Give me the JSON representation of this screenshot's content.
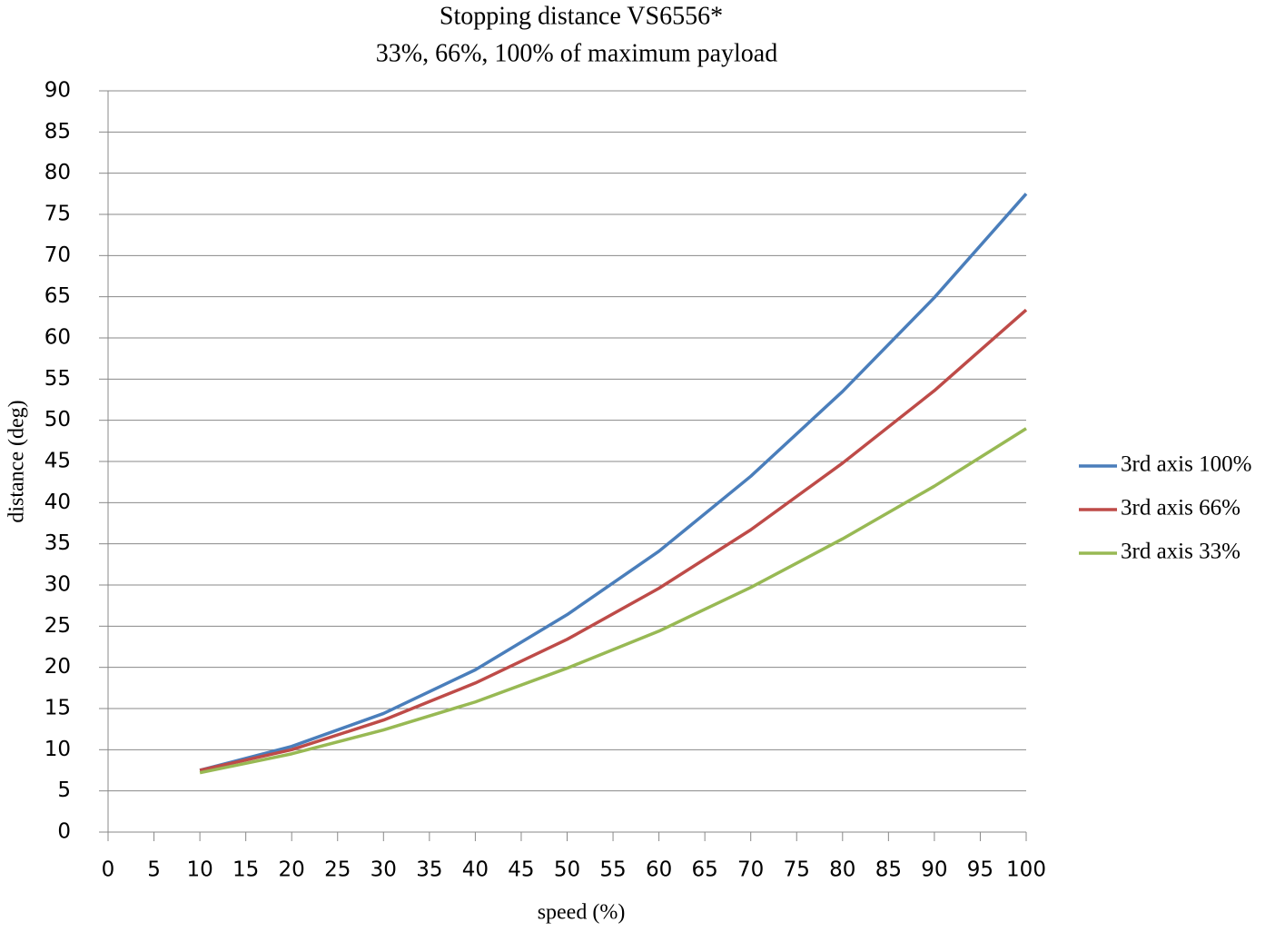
{
  "chart_data": {
    "type": "line",
    "title": "Stopping distance VS6556*",
    "subtitle": "33%, 66%, 100% of maximum payload",
    "x_label": "speed (%)",
    "y_label": "distance (deg)",
    "x": [
      10,
      20,
      30,
      40,
      50,
      60,
      70,
      80,
      90,
      100
    ],
    "series": [
      {
        "name": "3rd axis 100%",
        "color": "#4a7ebb",
        "values": [
          7.5,
          10.4,
          14.4,
          19.7,
          26.4,
          34.1,
          43.2,
          53.5,
          64.9,
          77.5
        ]
      },
      {
        "name": "3rd axis 66%",
        "color": "#be4b48",
        "values": [
          7.5,
          10.0,
          13.6,
          18.1,
          23.4,
          29.6,
          36.7,
          44.8,
          53.6,
          63.4
        ]
      },
      {
        "name": "3rd axis 33%",
        "color": "#98b954",
        "values": [
          7.2,
          9.5,
          12.4,
          15.8,
          19.9,
          24.4,
          29.7,
          35.6,
          42.0,
          49.0
        ]
      }
    ],
    "xlim": [
      0,
      100
    ],
    "xticks": [
      0,
      5,
      10,
      15,
      20,
      25,
      30,
      35,
      40,
      45,
      50,
      55,
      60,
      65,
      70,
      75,
      80,
      85,
      90,
      95,
      100
    ],
    "ylim": [
      0,
      90
    ],
    "yticks": [
      0,
      5,
      10,
      15,
      20,
      25,
      30,
      35,
      40,
      45,
      50,
      55,
      60,
      65,
      70,
      75,
      80,
      85,
      90
    ],
    "grid": true,
    "legend": "right"
  }
}
